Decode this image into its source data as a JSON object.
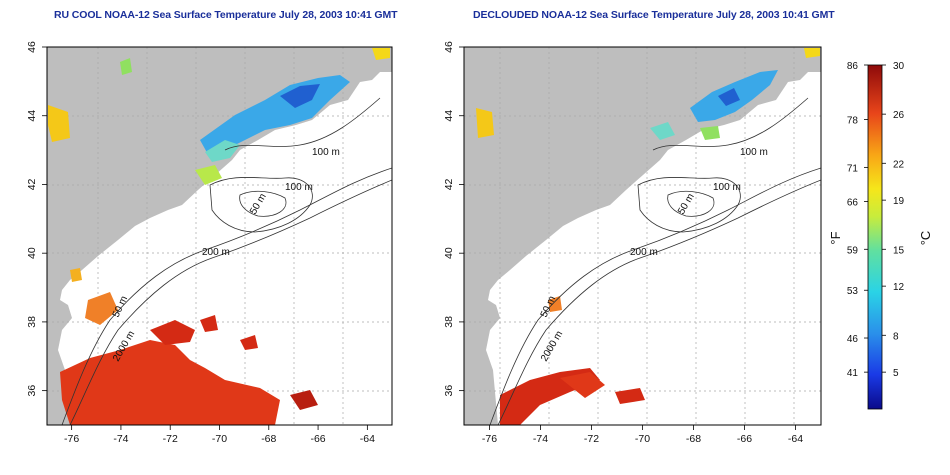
{
  "titles": {
    "left": "RU COOL NOAA-12 Sea Surface Temperature July 28, 2003 10:41 GMT",
    "right": "DECLOUDED NOAA-12 Sea Surface Temperature July 28, 2003 10:41 GMT"
  },
  "axes": {
    "x_ticks": [
      "-76",
      "-74",
      "-72",
      "-70",
      "-68",
      "-66",
      "-64"
    ],
    "y_ticks": [
      "36",
      "38",
      "40",
      "42",
      "44",
      "46"
    ],
    "lon_range": [
      -77,
      -63
    ],
    "lat_range": [
      35,
      46
    ]
  },
  "contour_labels": {
    "a": "100 m",
    "b": "100 m",
    "c": "50 m",
    "d": "200 m",
    "e": "50 m",
    "f": "2000 m"
  },
  "colorbar": {
    "fahrenheit_unit": "°F",
    "celsius_unit": "°C",
    "fahrenheit_ticks": [
      "86",
      "78",
      "71",
      "66",
      "59",
      "53",
      "46",
      "41"
    ],
    "celsius_ticks": [
      "30",
      "26",
      "22",
      "19",
      "15",
      "12",
      "8",
      "5"
    ]
  },
  "colors": {
    "land": "#bebebe",
    "water": "#ffffff",
    "title": "#1a2f9a",
    "warm": "#d62a12",
    "cool": "#2a80e0"
  }
}
